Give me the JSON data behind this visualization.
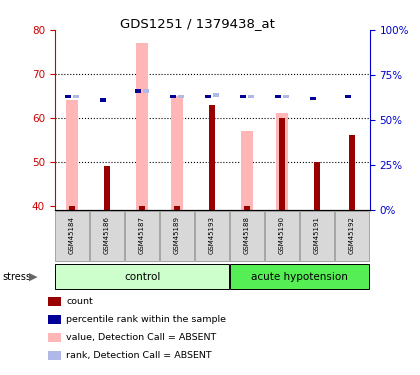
{
  "title": "GDS1251 / 1379438_at",
  "samples": [
    "GSM45184",
    "GSM45186",
    "GSM45187",
    "GSM45189",
    "GSM45193",
    "GSM45188",
    "GSM45190",
    "GSM45191",
    "GSM45192"
  ],
  "count_values": [
    40,
    49,
    40,
    40,
    63,
    40,
    60,
    50,
    56
  ],
  "percentile_values_pct": [
    62,
    60,
    65,
    62,
    62,
    62,
    62,
    61,
    62
  ],
  "value_absent": [
    64,
    null,
    77,
    65,
    null,
    57,
    61,
    null,
    null
  ],
  "rank_absent_pct": [
    62,
    null,
    65,
    62,
    63,
    62,
    62,
    null,
    null
  ],
  "ylim_left": [
    39,
    80
  ],
  "ylim_right": [
    0,
    100
  ],
  "yticks_left": [
    40,
    50,
    60,
    70,
    80
  ],
  "yticks_right": [
    0,
    25,
    50,
    75,
    100
  ],
  "ytick_labels_right": [
    "0%",
    "25%",
    "50%",
    "75%",
    "100%"
  ],
  "color_count": "#990000",
  "color_percentile": "#000099",
  "color_value_absent": "#ffb6b6",
  "color_rank_absent": "#b0b8e8",
  "tick_color_left": "#cc0000",
  "tick_color_right": "#0000cc",
  "control_color": "#ccffcc",
  "ah_color": "#55ee55",
  "n_control": 5,
  "n_ah": 4
}
